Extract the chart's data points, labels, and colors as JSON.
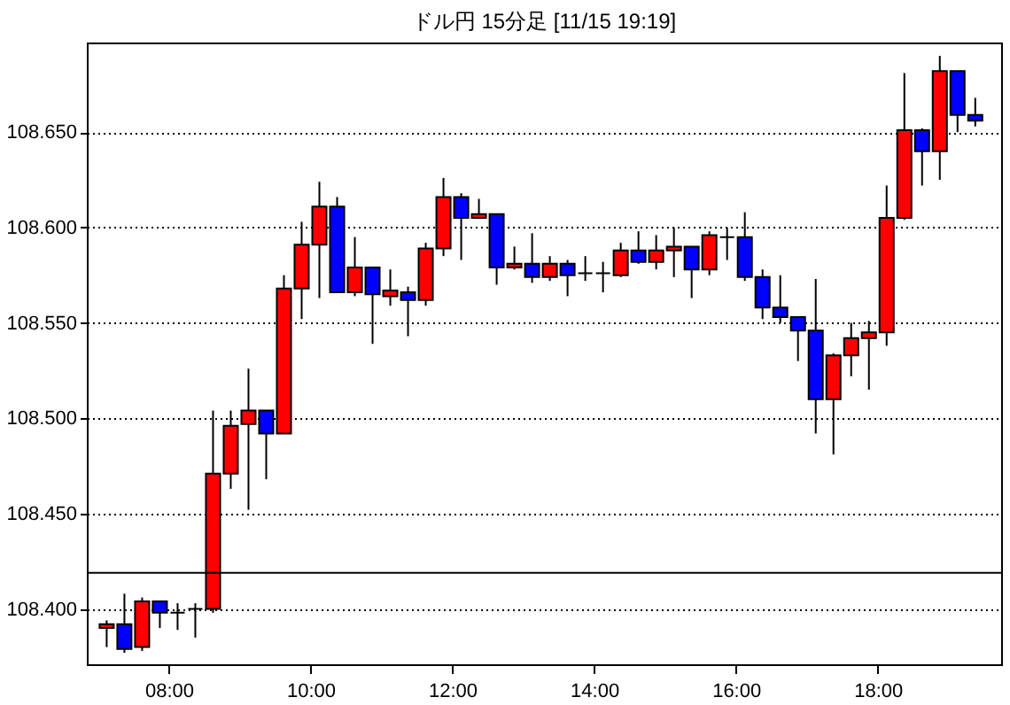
{
  "chart_data": {
    "type": "candlestick",
    "title": "ドル円 15分足 [11/15 19:19]",
    "x": [
      7.125,
      7.375,
      7.625,
      7.875,
      8.125,
      8.375,
      8.625,
      8.875,
      9.125,
      9.375,
      9.625,
      9.875,
      10.125,
      10.375,
      10.625,
      10.875,
      11.125,
      11.375,
      11.625,
      11.875,
      12.125,
      12.375,
      12.625,
      12.875,
      13.125,
      13.375,
      13.625,
      13.875,
      14.125,
      14.375,
      14.625,
      14.875,
      15.125,
      15.375,
      15.625,
      15.875,
      16.125,
      16.375,
      16.625,
      16.875,
      17.125,
      17.375,
      17.625,
      17.875,
      18.125,
      18.375,
      18.625,
      18.875,
      19.125,
      19.375
    ],
    "ohlc": [
      [
        108.39,
        108.394,
        108.38,
        108.392
      ],
      [
        108.392,
        108.408,
        108.377,
        108.379
      ],
      [
        108.38,
        108.406,
        108.378,
        108.404
      ],
      [
        108.404,
        108.404,
        108.39,
        108.398
      ],
      [
        108.398,
        108.403,
        108.389,
        108.398
      ],
      [
        108.4,
        108.403,
        108.385,
        108.4
      ],
      [
        108.4,
        108.504,
        108.398,
        108.471
      ],
      [
        108.471,
        108.504,
        108.463,
        108.496
      ],
      [
        108.497,
        108.526,
        108.452,
        108.504
      ],
      [
        108.504,
        108.504,
        108.468,
        108.492
      ],
      [
        108.492,
        108.575,
        108.492,
        108.568
      ],
      [
        108.568,
        108.603,
        108.552,
        108.591
      ],
      [
        108.591,
        108.624,
        108.563,
        108.611
      ],
      [
        108.611,
        108.616,
        108.566,
        108.566
      ],
      [
        108.566,
        108.595,
        108.564,
        108.579
      ],
      [
        108.579,
        108.579,
        108.539,
        108.565
      ],
      [
        108.564,
        108.578,
        108.559,
        108.567
      ],
      [
        108.566,
        108.569,
        108.543,
        108.562
      ],
      [
        108.562,
        108.592,
        108.559,
        108.589
      ],
      [
        108.589,
        108.626,
        108.585,
        108.616
      ],
      [
        108.616,
        108.618,
        108.583,
        108.605
      ],
      [
        108.605,
        108.615,
        108.605,
        108.607
      ],
      [
        108.607,
        108.607,
        108.57,
        108.579
      ],
      [
        108.579,
        108.59,
        108.578,
        108.581
      ],
      [
        108.581,
        108.597,
        108.571,
        108.574
      ],
      [
        108.574,
        108.585,
        108.572,
        108.581
      ],
      [
        108.581,
        108.583,
        108.564,
        108.575
      ],
      [
        108.576,
        108.585,
        108.572,
        108.576
      ],
      [
        108.576,
        108.582,
        108.566,
        108.576
      ],
      [
        108.575,
        108.592,
        108.574,
        108.588
      ],
      [
        108.588,
        108.598,
        108.581,
        108.582
      ],
      [
        108.582,
        108.596,
        108.578,
        108.588
      ],
      [
        108.588,
        108.6,
        108.574,
        108.59
      ],
      [
        108.59,
        108.59,
        108.563,
        108.578
      ],
      [
        108.578,
        108.598,
        108.575,
        108.596
      ],
      [
        108.595,
        108.6,
        108.583,
        108.595
      ],
      [
        108.595,
        108.608,
        108.572,
        108.574
      ],
      [
        108.574,
        108.578,
        108.552,
        108.558
      ],
      [
        108.558,
        108.575,
        108.55,
        108.553
      ],
      [
        108.553,
        108.553,
        108.53,
        108.546
      ],
      [
        108.546,
        108.573,
        108.492,
        108.51
      ],
      [
        108.51,
        108.534,
        108.481,
        108.533
      ],
      [
        108.533,
        108.55,
        108.522,
        108.542
      ],
      [
        108.542,
        108.551,
        108.515,
        108.545
      ],
      [
        108.545,
        108.622,
        108.538,
        108.605
      ],
      [
        108.605,
        108.681,
        108.604,
        108.651
      ],
      [
        108.651,
        108.652,
        108.622,
        108.64
      ],
      [
        108.64,
        108.69,
        108.625,
        108.682
      ],
      [
        108.682,
        108.682,
        108.65,
        108.659
      ],
      [
        108.659,
        108.668,
        108.653,
        108.656
      ]
    ],
    "colors": [
      "#ff0000",
      "#0000ff",
      "#ff0000",
      "#0000ff",
      "#000000",
      "#000000",
      "#ff0000",
      "#ff0000",
      "#ff0000",
      "#0000ff",
      "#ff0000",
      "#ff0000",
      "#ff0000",
      "#0000ff",
      "#ff0000",
      "#0000ff",
      "#ff0000",
      "#0000ff",
      "#ff0000",
      "#ff0000",
      "#0000ff",
      "#ff0000",
      "#0000ff",
      "#ff0000",
      "#0000ff",
      "#ff0000",
      "#0000ff",
      "#000000",
      "#000000",
      "#ff0000",
      "#0000ff",
      "#ff0000",
      "#ff0000",
      "#0000ff",
      "#ff0000",
      "#000000",
      "#0000ff",
      "#0000ff",
      "#0000ff",
      "#0000ff",
      "#0000ff",
      "#ff0000",
      "#ff0000",
      "#ff0000",
      "#ff0000",
      "#ff0000",
      "#0000ff",
      "#ff0000",
      "#0000ff",
      "#0000ff"
    ],
    "xlim": [
      6.845,
      19.74
    ],
    "xticks": [
      {
        "value": 8,
        "label": "08:00"
      },
      {
        "value": 10,
        "label": "10:00"
      },
      {
        "value": 12,
        "label": "12:00"
      },
      {
        "value": 14,
        "label": "14:00"
      },
      {
        "value": 16,
        "label": "16:00"
      },
      {
        "value": 18,
        "label": "18:00"
      }
    ],
    "ylim": [
      108.371,
      108.697
    ],
    "yticks": [
      {
        "value": 108.4,
        "label": "108.400"
      },
      {
        "value": 108.45,
        "label": "108.450"
      },
      {
        "value": 108.5,
        "label": "108.500"
      },
      {
        "value": 108.55,
        "label": "108.550"
      },
      {
        "value": 108.6,
        "label": "108.600"
      },
      {
        "value": 108.65,
        "label": "108.650"
      }
    ],
    "ref_lines": [
      {
        "axis": "y",
        "value": 108.419,
        "color": "#000000"
      }
    ],
    "grid": "y"
  }
}
